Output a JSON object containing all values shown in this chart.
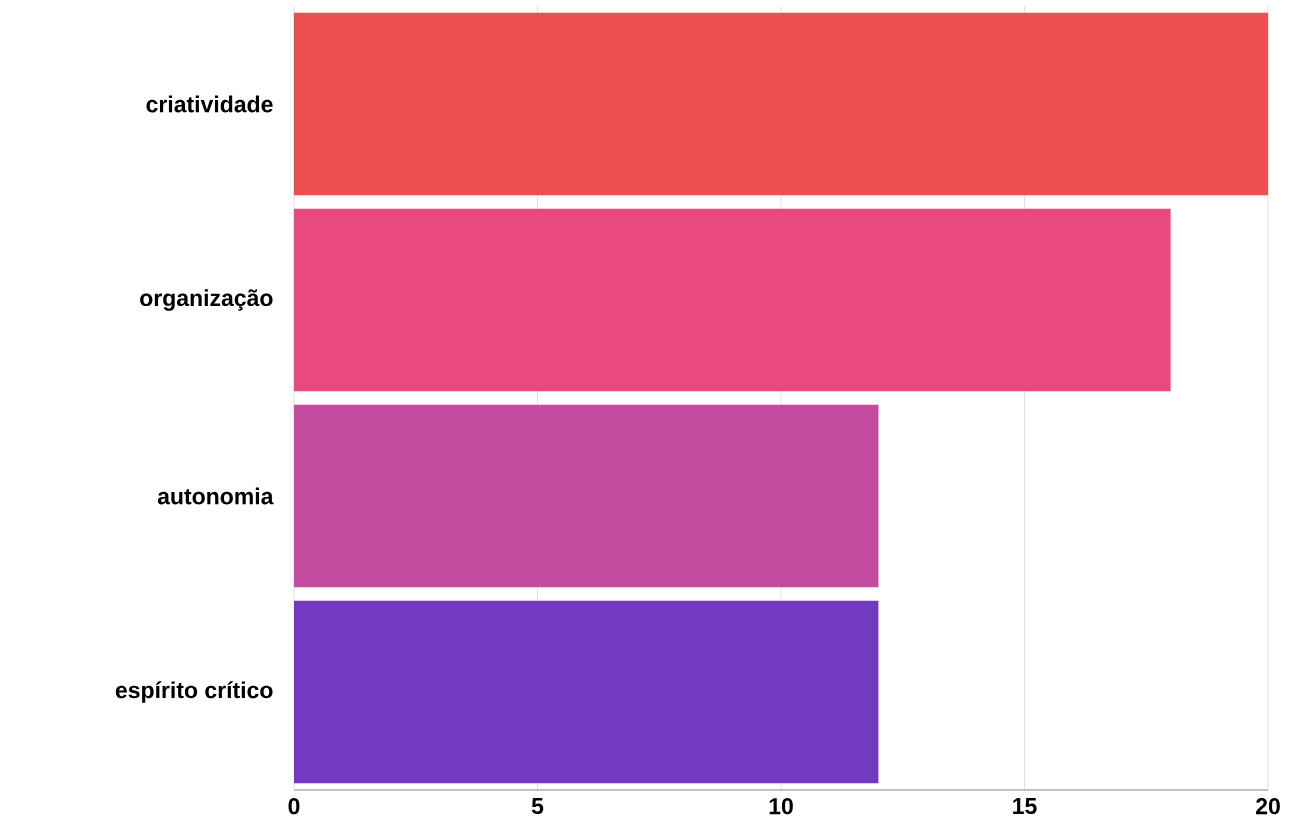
{
  "chart_data": {
    "type": "bar",
    "orientation": "horizontal",
    "categories": [
      "criatividade",
      "organização",
      "autonomia",
      "espírito crítico"
    ],
    "values": [
      20,
      18,
      12,
      12
    ],
    "colors": [
      "#ec4f52",
      "#e84a7e",
      "#c24a9f",
      "#733ac0"
    ],
    "xlim": [
      0,
      20
    ],
    "xticks": [
      0,
      5,
      10,
      15,
      20
    ],
    "grid": "x"
  }
}
